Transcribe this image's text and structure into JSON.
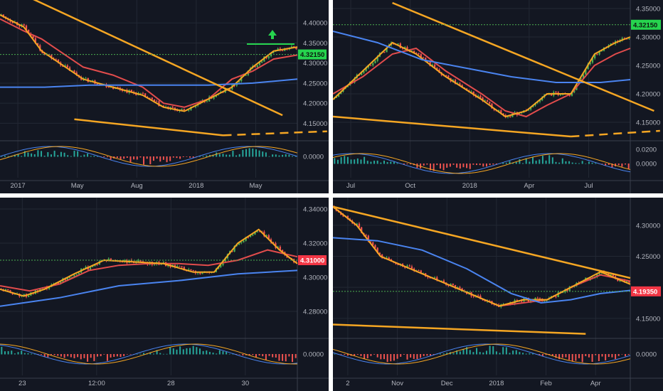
{
  "chart_data": [
    {
      "type": "line",
      "title": "",
      "timeframe": "daily",
      "x_labels": [
        "2017",
        "May",
        "Aug",
        "2018",
        "May"
      ],
      "y_ticks": [
        "4.15000",
        "4.20000",
        "4.25000",
        "4.30000",
        "4.35000",
        "4.40000"
      ],
      "ylim": [
        4.11,
        4.45
      ],
      "price_tag": "4.32150",
      "osc_ticks": [
        "0.0000"
      ],
      "series": [
        {
          "name": "",
          "color": "#e24c4c",
          "points": [
            [
              0,
              4.41
            ],
            [
              8,
              4.38
            ],
            [
              14,
              4.36
            ],
            [
              20,
              4.33
            ],
            [
              28,
              4.29
            ],
            [
              38,
              4.27
            ],
            [
              48,
              4.24
            ],
            [
              55,
              4.2
            ],
            [
              62,
              4.19
            ],
            [
              70,
              4.21
            ],
            [
              78,
              4.26
            ],
            [
              85,
              4.28
            ],
            [
              92,
              4.31
            ],
            [
              100,
              4.32
            ]
          ]
        },
        {
          "name": "",
          "color": "#f5a623",
          "points": [
            [
              0,
              4.42
            ],
            [
              8,
              4.39
            ],
            [
              14,
              4.33
            ],
            [
              20,
              4.3
            ],
            [
              28,
              4.26
            ],
            [
              38,
              4.24
            ],
            [
              48,
              4.22
            ],
            [
              55,
              4.19
            ],
            [
              62,
              4.18
            ],
            [
              70,
              4.21
            ],
            [
              78,
              4.24
            ],
            [
              85,
              4.29
            ],
            [
              92,
              4.33
            ],
            [
              100,
              4.34
            ]
          ]
        },
        {
          "name": "",
          "color": "#4a84f0",
          "points": [
            [
              0,
              4.24
            ],
            [
              15,
              4.24
            ],
            [
              30,
              4.245
            ],
            [
              50,
              4.245
            ],
            [
              70,
              4.245
            ],
            [
              85,
              4.25
            ],
            [
              100,
              4.26
            ]
          ]
        }
      ],
      "trendlines": [
        {
          "from": [
            8,
            4.47
          ],
          "to": [
            95,
            4.17
          ]
        },
        {
          "from": [
            25,
            4.16
          ],
          "to": [
            75,
            4.12
          ]
        },
        {
          "from": [
            75,
            4.12
          ],
          "to": [
            110,
            4.13
          ],
          "dashed": true
        }
      ]
    },
    {
      "type": "line",
      "title": "",
      "timeframe": "daily",
      "x_labels": [
        "Jul",
        "Oct",
        "2018",
        "Apr",
        "Jul"
      ],
      "y_ticks": [
        "4.15000",
        "4.20000",
        "4.25000",
        "4.30000",
        "4.35000"
      ],
      "ylim": [
        4.12,
        4.36
      ],
      "price_tag": "4.32150",
      "osc_ticks": [
        "0.0200",
        "0.0000"
      ],
      "series": [
        {
          "name": "",
          "color": "#e24c4c",
          "points": [
            [
              0,
              4.2
            ],
            [
              10,
              4.23
            ],
            [
              20,
              4.27
            ],
            [
              28,
              4.28
            ],
            [
              38,
              4.24
            ],
            [
              50,
              4.2
            ],
            [
              58,
              4.17
            ],
            [
              65,
              4.16
            ],
            [
              72,
              4.18
            ],
            [
              80,
              4.2
            ],
            [
              88,
              4.25
            ],
            [
              95,
              4.27
            ],
            [
              100,
              4.28
            ]
          ]
        },
        {
          "name": "",
          "color": "#f5a623",
          "points": [
            [
              0,
              4.19
            ],
            [
              10,
              4.24
            ],
            [
              20,
              4.29
            ],
            [
              28,
              4.27
            ],
            [
              38,
              4.23
            ],
            [
              50,
              4.19
            ],
            [
              58,
              4.16
            ],
            [
              65,
              4.17
            ],
            [
              72,
              4.2
            ],
            [
              80,
              4.2
            ],
            [
              88,
              4.27
            ],
            [
              95,
              4.29
            ],
            [
              100,
              4.3
            ]
          ]
        },
        {
          "name": "",
          "color": "#4a84f0",
          "points": [
            [
              0,
              4.31
            ],
            [
              15,
              4.29
            ],
            [
              30,
              4.26
            ],
            [
              45,
              4.245
            ],
            [
              60,
              4.23
            ],
            [
              75,
              4.22
            ],
            [
              90,
              4.22
            ],
            [
              100,
              4.225
            ]
          ]
        }
      ],
      "trendlines": [
        {
          "from": [
            20,
            4.36
          ],
          "to": [
            108,
            4.17
          ]
        },
        {
          "from": [
            0,
            4.16
          ],
          "to": [
            80,
            4.125
          ]
        },
        {
          "from": [
            80,
            4.125
          ],
          "to": [
            110,
            4.135
          ],
          "dashed": true
        }
      ]
    },
    {
      "type": "line",
      "title": "",
      "timeframe": "intraday",
      "x_labels": [
        "23",
        "12:00",
        "28",
        "30"
      ],
      "y_ticks": [
        "4.28000",
        "4.30000",
        "4.32000",
        "4.34000"
      ],
      "ylim": [
        4.265,
        4.345
      ],
      "price_tag": "4.31000",
      "osc_ticks": [
        "0.0000"
      ],
      "series": [
        {
          "name": "",
          "color": "#e24c4c",
          "points": [
            [
              0,
              4.295
            ],
            [
              10,
              4.292
            ],
            [
              20,
              4.296
            ],
            [
              30,
              4.304
            ],
            [
              40,
              4.307
            ],
            [
              50,
              4.308
            ],
            [
              60,
              4.308
            ],
            [
              70,
              4.307
            ],
            [
              80,
              4.31
            ],
            [
              90,
              4.316
            ],
            [
              100,
              4.312
            ]
          ]
        },
        {
          "name": "",
          "color": "#f5a623",
          "points": [
            [
              0,
              4.293
            ],
            [
              8,
              4.289
            ],
            [
              15,
              4.293
            ],
            [
              25,
              4.302
            ],
            [
              35,
              4.31
            ],
            [
              45,
              4.309
            ],
            [
              55,
              4.308
            ],
            [
              65,
              4.303
            ],
            [
              72,
              4.303
            ],
            [
              80,
              4.32
            ],
            [
              87,
              4.328
            ],
            [
              94,
              4.316
            ],
            [
              100,
              4.308
            ]
          ]
        },
        {
          "name": "",
          "color": "#4a84f0",
          "points": [
            [
              0,
              4.283
            ],
            [
              20,
              4.288
            ],
            [
              40,
              4.295
            ],
            [
              60,
              4.298
            ],
            [
              80,
              4.302
            ],
            [
              100,
              4.304
            ]
          ]
        }
      ],
      "trendlines": []
    },
    {
      "type": "line",
      "title": "",
      "timeframe": "intraday",
      "x_labels": [
        "2",
        "Nov",
        "Dec",
        "2018",
        "Feb",
        "Apr"
      ],
      "y_ticks": [
        "4.15000",
        "4.20000",
        "4.25000",
        "4.30000"
      ],
      "ylim": [
        4.12,
        4.34
      ],
      "price_tag": "4.19350",
      "osc_ticks": [
        "0.0000"
      ],
      "series": [
        {
          "name": "",
          "color": "#e24c4c",
          "points": [
            [
              0,
              4.33
            ],
            [
              8,
              4.3
            ],
            [
              16,
              4.25
            ],
            [
              26,
              4.23
            ],
            [
              36,
              4.21
            ],
            [
              46,
              4.19
            ],
            [
              56,
              4.17
            ],
            [
              64,
              4.175
            ],
            [
              72,
              4.18
            ],
            [
              80,
              4.2
            ],
            [
              90,
              4.22
            ],
            [
              100,
              4.21
            ]
          ]
        },
        {
          "name": "",
          "color": "#f5a623",
          "points": [
            [
              0,
              4.33
            ],
            [
              8,
              4.3
            ],
            [
              16,
              4.25
            ],
            [
              26,
              4.23
            ],
            [
              36,
              4.21
            ],
            [
              46,
              4.19
            ],
            [
              56,
              4.17
            ],
            [
              64,
              4.18
            ],
            [
              72,
              4.18
            ],
            [
              80,
              4.2
            ],
            [
              90,
              4.225
            ],
            [
              100,
              4.205
            ]
          ]
        },
        {
          "name": "",
          "color": "#4a84f0",
          "points": [
            [
              0,
              4.28
            ],
            [
              15,
              4.275
            ],
            [
              30,
              4.26
            ],
            [
              45,
              4.23
            ],
            [
              60,
              4.19
            ],
            [
              70,
              4.175
            ],
            [
              80,
              4.18
            ],
            [
              90,
              4.19
            ],
            [
              100,
              4.195
            ]
          ]
        }
      ],
      "trendlines": [
        {
          "from": [
            0,
            4.33
          ],
          "to": [
            100,
            4.215
          ]
        },
        {
          "from": [
            0,
            4.14
          ],
          "to": [
            85,
            4.125
          ]
        }
      ]
    }
  ]
}
